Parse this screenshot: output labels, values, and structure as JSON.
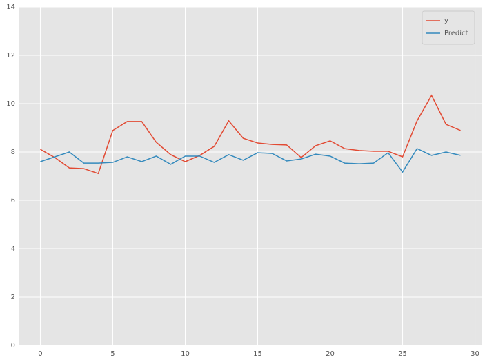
{
  "chart_data": {
    "type": "line",
    "x": [
      0,
      1,
      2,
      3,
      4,
      5,
      6,
      7,
      8,
      9,
      10,
      11,
      12,
      13,
      14,
      15,
      16,
      17,
      18,
      19,
      20,
      21,
      22,
      23,
      24,
      25,
      26,
      27,
      28,
      29
    ],
    "series": [
      {
        "name": "y",
        "color": "#E24A33",
        "values": [
          8.11,
          7.77,
          7.34,
          7.31,
          7.11,
          8.89,
          9.26,
          9.26,
          8.4,
          7.89,
          7.6,
          7.86,
          8.23,
          9.29,
          8.57,
          8.37,
          8.31,
          8.29,
          7.77,
          8.26,
          8.46,
          8.14,
          8.06,
          8.03,
          8.03,
          7.8,
          9.29,
          10.34,
          9.14,
          8.89
        ]
      },
      {
        "name": "Predict",
        "color": "#348ABD",
        "values": [
          7.6,
          7.8,
          8.0,
          7.54,
          7.54,
          7.57,
          7.8,
          7.6,
          7.83,
          7.49,
          7.83,
          7.83,
          7.57,
          7.89,
          7.66,
          7.97,
          7.94,
          7.63,
          7.71,
          7.91,
          7.83,
          7.54,
          7.51,
          7.54,
          7.97,
          7.17,
          8.14,
          7.86,
          8.0,
          7.86
        ]
      }
    ],
    "xlim": [
      -1.45,
      30.45
    ],
    "xticks": [
      0,
      5,
      10,
      15,
      20,
      25,
      30
    ],
    "ylim": [
      0,
      14
    ],
    "yticks": [
      0,
      2,
      4,
      6,
      8,
      10,
      12,
      14
    ],
    "grid": true,
    "legend": "upper-right"
  }
}
